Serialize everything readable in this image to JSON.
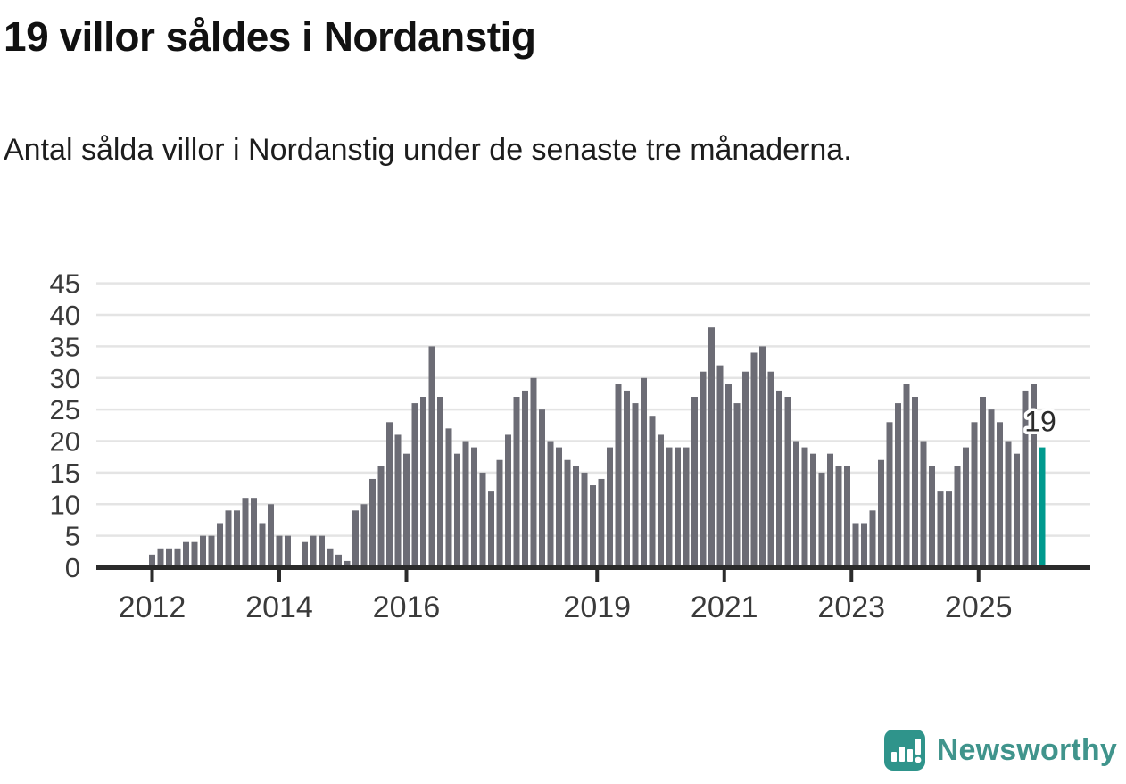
{
  "header": {
    "title": "19 villor såldes i Nordanstig",
    "subtitle": "Antal sålda villor i Nordanstig under de senaste tre månaderna."
  },
  "chart_data": {
    "type": "bar",
    "title": "19 villor såldes i Nordanstig",
    "subtitle": "Antal sålda villor i Nordanstig under de senaste tre månaderna.",
    "unit": "sålda villor (rullande 3 månader)",
    "ylim": [
      0,
      45
    ],
    "yticks": [
      0,
      5,
      10,
      15,
      20,
      25,
      30,
      35,
      40,
      45
    ],
    "grid": true,
    "x_ticks": [
      {
        "label": "2012",
        "slot": 0
      },
      {
        "label": "2014",
        "slot": 15
      },
      {
        "label": "2016",
        "slot": 30
      },
      {
        "label": "2019",
        "slot": 52.5
      },
      {
        "label": "2021",
        "slot": 67.5
      },
      {
        "label": "2023",
        "slot": 82.5
      },
      {
        "label": "2025",
        "slot": 97.5
      }
    ],
    "values": [
      2,
      3,
      3,
      3,
      4,
      4,
      5,
      5,
      7,
      9,
      9,
      11,
      11,
      7,
      10,
      5,
      5,
      0,
      4,
      5,
      5,
      3,
      2,
      1,
      9,
      10,
      14,
      16,
      23,
      21,
      18,
      26,
      27,
      35,
      27,
      22,
      18,
      20,
      19,
      15,
      12,
      17,
      21,
      27,
      28,
      30,
      25,
      20,
      19,
      17,
      16,
      15,
      13,
      14,
      19,
      29,
      28,
      26,
      30,
      24,
      21,
      19,
      19,
      19,
      27,
      31,
      38,
      32,
      29,
      26,
      31,
      34,
      35,
      31,
      28,
      27,
      20,
      19,
      18,
      15,
      18,
      16,
      16,
      7,
      7,
      9,
      17,
      23,
      26,
      29,
      27,
      20,
      16,
      12,
      12,
      16,
      19,
      23,
      27,
      25,
      23,
      20,
      18,
      28,
      29,
      19
    ],
    "highlight": {
      "index": 105,
      "value": 19,
      "annotation": "19"
    },
    "colors": {
      "bar": "#6c6c75",
      "highlight": "#009a8e",
      "grid": "#e4e4e4",
      "axis": "#2b2b2b",
      "tick_label": "#3a3a3a",
      "annotation_text": "#2b2b2b"
    }
  },
  "branding": {
    "wordmark": "Newsworthy",
    "logo_icon": "bar-chart-logo-icon",
    "colors": {
      "logo_square": "#2f948b",
      "logo_glyph": "#ffffff",
      "wordmark": "#40948c"
    }
  }
}
